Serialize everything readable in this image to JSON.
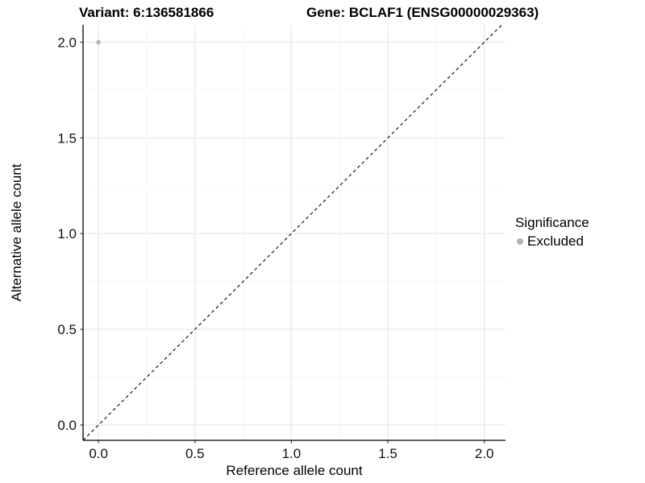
{
  "chart_data": {
    "type": "scatter",
    "titles": {
      "left": "Variant: 6:136581866",
      "right": "Gene: BCLAF1 (ENSG00000029363)"
    },
    "xlabel": "Reference allele count",
    "ylabel": "Alternative allele count",
    "xlim": [
      -0.08,
      2.11
    ],
    "ylim": [
      -0.08,
      2.09
    ],
    "xticks": {
      "values": [
        0,
        0.5,
        1,
        1.5,
        2
      ],
      "labels": [
        "0.0",
        "0.5",
        "1.0",
        "1.5",
        "2.0"
      ]
    },
    "yticks": {
      "values": [
        0,
        0.5,
        1,
        1.5,
        2
      ],
      "labels": [
        "0.0",
        "0.5",
        "1.0",
        "1.5",
        "2.0"
      ]
    },
    "grid": {
      "on": true,
      "minor_x": [
        0.25,
        0.75,
        1.25,
        1.75
      ],
      "minor_y": [
        0.25,
        0.75,
        1.25,
        1.75
      ],
      "major_color": "#e8e8e8",
      "minor_color": "#f3f3f3",
      "background": "#ffffff"
    },
    "points": [
      {
        "x": 0,
        "y": 2,
        "series": "Excluded"
      }
    ],
    "series_colors": {
      "Excluded": "#b3b3b3"
    },
    "identity_line": {
      "equation": "y = x",
      "style": "dashed",
      "color": "#000000"
    },
    "axis_color": "#000000",
    "tick_color": "#333333",
    "tick_label_color": "#111111",
    "legend": {
      "title": "Significance",
      "position": "right",
      "entries": [
        {
          "label": "Excluded",
          "color": "#b3b3b3",
          "marker": "circle"
        }
      ]
    }
  }
}
